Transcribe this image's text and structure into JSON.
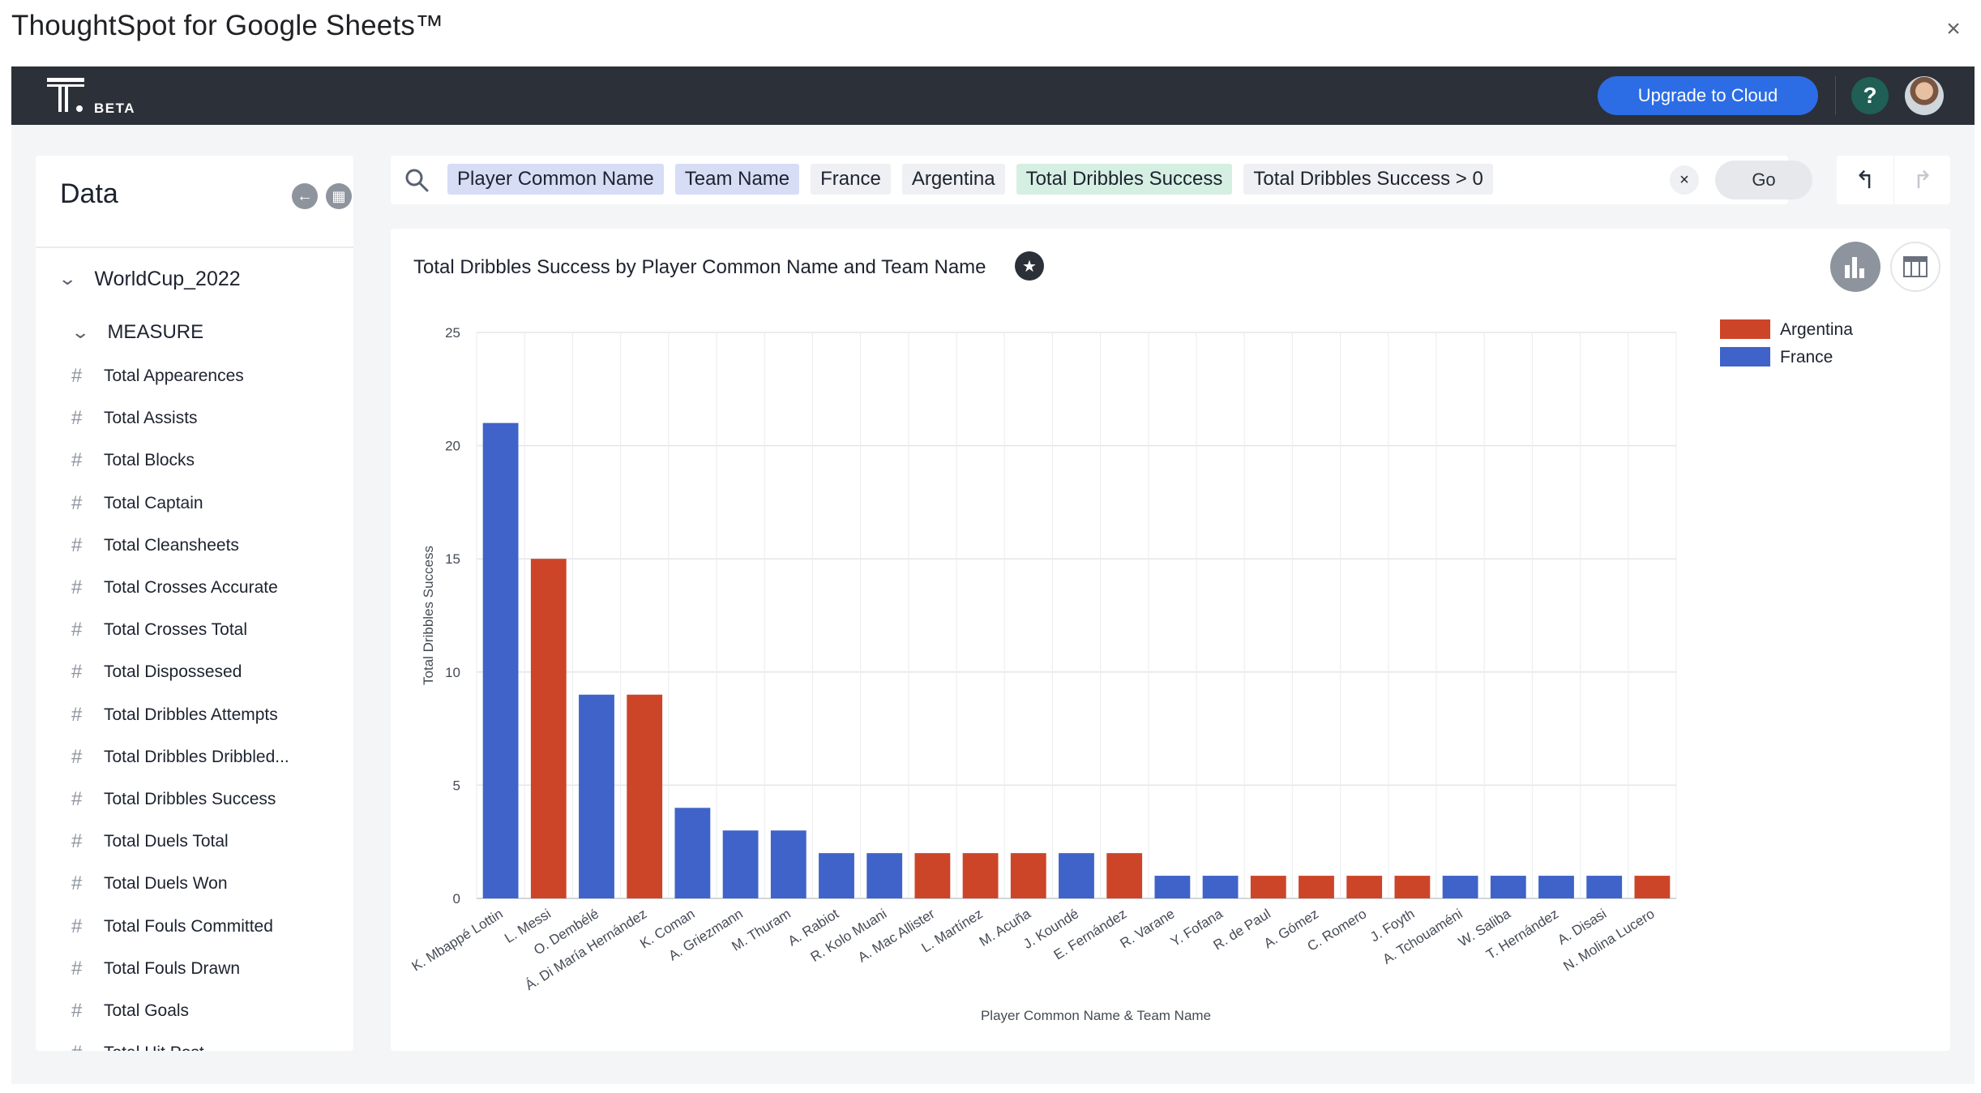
{
  "dialog": {
    "title": "ThoughtSpot for Google Sheets™",
    "close_glyph": "×"
  },
  "topbar": {
    "beta": "BETA",
    "upgrade_label": "Upgrade to Cloud",
    "help_label": "?"
  },
  "sidebar": {
    "title": "Data",
    "datasource": "WorldCup_2022",
    "group": "MEASURE",
    "columns": [
      "Total Appearences",
      "Total Assists",
      "Total Blocks",
      "Total Captain",
      "Total Cleansheets",
      "Total Crosses Accurate",
      "Total Crosses Total",
      "Total Dispossesed",
      "Total Dribbles Attempts",
      "Total Dribbles Dribbled...",
      "Total Dribbles Success",
      "Total Duels Total",
      "Total Duels Won",
      "Total Fouls Committed",
      "Total Fouls Drawn",
      "Total Goals",
      "Total Hit Post"
    ]
  },
  "search": {
    "tokens": [
      {
        "text": "Player Common Name",
        "kind": "attr"
      },
      {
        "text": "Team Name",
        "kind": "attr"
      },
      {
        "text": "France",
        "kind": "val"
      },
      {
        "text": "Argentina",
        "kind": "val"
      },
      {
        "text": "Total Dribbles Success",
        "kind": "meas"
      },
      {
        "text": "Total Dribbles Success > 0",
        "kind": "val"
      }
    ],
    "clear_glyph": "×",
    "go_label": "Go"
  },
  "chart": {
    "title": "Total Dribbles Success by Player Common Name and Team Name"
  },
  "colors": {
    "Argentina": "#cc4528",
    "France": "#3f63c8",
    "topbar": "#2c3039",
    "accent": "#2c6de6"
  },
  "chart_data": {
    "type": "bar",
    "title": "Total Dribbles Success by Player Common Name and Team Name",
    "xlabel": "Player Common Name & Team Name",
    "ylabel": "Total Dribbles Success",
    "ylim": [
      0,
      25
    ],
    "yticks": [
      0,
      5,
      10,
      15,
      20,
      25
    ],
    "grid": true,
    "legend": {
      "position": "top-right",
      "entries": [
        "Argentina",
        "France"
      ]
    },
    "categories": [
      "K. Mbappé Lottin",
      "L. Messi",
      "O. Dembélé",
      "Á. Di María Hernández",
      "K. Coman",
      "A. Griezmann",
      "M. Thuram",
      "A. Rabiot",
      "R. Kolo Muani",
      "A. Mac Allister",
      "L. Martínez",
      "M. Acuña",
      "J. Koundé",
      "E. Fernández",
      "R. Varane",
      "Y. Fofana",
      "R. de Paul",
      "A. Gómez",
      "C. Romero",
      "J. Foyth",
      "A. Tchouaméni",
      "W. Saliba",
      "T. Hernández",
      "A. Disasi",
      "N. Molina Lucero"
    ],
    "teams": [
      "France",
      "Argentina",
      "France",
      "Argentina",
      "France",
      "France",
      "France",
      "France",
      "France",
      "Argentina",
      "Argentina",
      "Argentina",
      "France",
      "Argentina",
      "France",
      "France",
      "Argentina",
      "Argentina",
      "Argentina",
      "Argentina",
      "France",
      "France",
      "France",
      "France",
      "Argentina"
    ],
    "values": [
      21,
      15,
      9,
      9,
      4,
      3,
      3,
      2,
      2,
      2,
      2,
      2,
      2,
      2,
      1,
      1,
      1,
      1,
      1,
      1,
      1,
      1,
      1,
      1,
      1
    ]
  }
}
